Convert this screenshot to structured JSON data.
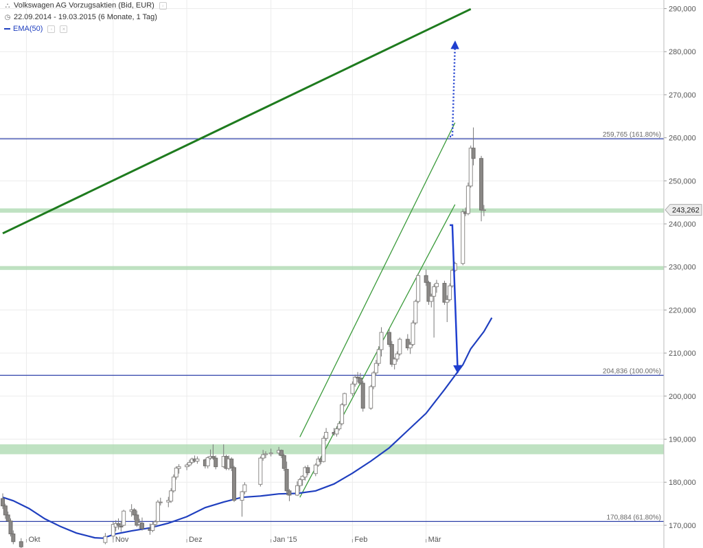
{
  "header": {
    "title": "Volkswagen AG Vorzugsaktien (Bid, EUR)",
    "period": "22.09.2014 - 19.03.2015 (6 Monate, 1 Tag)",
    "indicator": "EMA(50)"
  },
  "chart_data": {
    "type": "candlestick",
    "y_axis": {
      "position": "right",
      "ticks": [
        "170,000",
        "180,000",
        "190,000",
        "200,000",
        "210,000",
        "220,000",
        "230,000",
        "240,000",
        "250,000",
        "260,000",
        "270,000",
        "280,000",
        "290,000"
      ],
      "range": [
        166,
        292
      ]
    },
    "x_axis": {
      "ticks": [
        "Okt",
        "Nov",
        "Dez",
        "Jan '15",
        "Feb",
        "Mär"
      ]
    },
    "last_price": "243,262",
    "horizontal_levels": [
      {
        "value": 259.765,
        "label": "259,765 (161.80%)",
        "color": "#2b3fa8"
      },
      {
        "value": 204.836,
        "label": "204,836 (100.00%)",
        "color": "#2b3fa8"
      },
      {
        "value": 170.884,
        "label": "170,884 (61.80%)",
        "color": "#2b3fa8"
      }
    ],
    "support_zones": [
      {
        "from": 186.5,
        "to": 188.8,
        "color": "#a9d8ad"
      },
      {
        "from": 229.3,
        "to": 230.2,
        "color": "#a9d8ad"
      },
      {
        "from": 242.6,
        "to": 243.6,
        "color": "#a9d8ad"
      }
    ],
    "trendline": {
      "from": [
        "2014-09-22",
        237.8
      ],
      "to": [
        "2015-03-19",
        289.9
      ],
      "color": "#1e7b1e"
    },
    "channel": [
      {
        "from": [
          "2015-01-13",
          190.5
        ],
        "to": [
          "2015-03-13",
          263.5
        ],
        "color": "#3a9a3a"
      },
      {
        "from": [
          "2015-01-13",
          176.5
        ],
        "to": [
          "2015-03-13",
          244.5
        ],
        "color": "#3a9a3a"
      }
    ],
    "arrows": [
      {
        "style": "dotted",
        "points": [
          [
            "2015-03-11",
            260.3
          ],
          [
            "2015-03-12",
            260.3
          ],
          [
            "2015-03-13",
            281.6
          ]
        ],
        "color": "#1f3fcf"
      },
      {
        "style": "solid",
        "points": [
          [
            "2015-03-11",
            239.7
          ],
          [
            "2015-03-12",
            239.7
          ],
          [
            "2015-03-14",
            206.2
          ]
        ],
        "color": "#1f3fcf"
      }
    ],
    "ema50": {
      "color": "#1f3fbf",
      "points": [
        [
          "2014-09-22",
          176.5
        ],
        [
          "2014-09-26",
          175.7
        ],
        [
          "2014-10-02",
          173.9
        ],
        [
          "2014-10-08",
          171.5
        ],
        [
          "2014-10-14",
          169.7
        ],
        [
          "2014-10-20",
          168.2
        ],
        [
          "2014-10-27",
          167.1
        ],
        [
          "2014-10-30",
          167.0
        ],
        [
          "2014-11-04",
          168.0
        ],
        [
          "2014-11-10",
          168.7
        ],
        [
          "2014-11-17",
          169.4
        ],
        [
          "2014-11-24",
          170.5
        ],
        [
          "2014-12-01",
          172.0
        ],
        [
          "2014-12-08",
          174.1
        ],
        [
          "2014-12-15",
          175.4
        ],
        [
          "2014-12-22",
          176.5
        ],
        [
          "2014-12-29",
          176.8
        ],
        [
          "2015-01-05",
          177.3
        ],
        [
          "2015-01-12",
          177.4
        ],
        [
          "2015-01-19",
          178.0
        ],
        [
          "2015-01-26",
          179.6
        ],
        [
          "2015-02-02",
          182.1
        ],
        [
          "2015-02-09",
          184.9
        ],
        [
          "2015-02-16",
          188.0
        ],
        [
          "2015-02-23",
          192.0
        ],
        [
          "2015-03-02",
          196.0
        ],
        [
          "2015-03-09",
          201.5
        ],
        [
          "2015-03-16",
          207.3
        ],
        [
          "2015-03-19",
          211.0
        ],
        [
          "2015-03-24",
          215.0
        ],
        [
          "2015-03-27",
          218.2
        ]
      ]
    },
    "candles": [
      [
        "2014-09-22",
        176.2,
        177.4,
        173.8,
        174.5
      ],
      [
        "2014-09-23",
        174.5,
        175.0,
        171.5,
        172.4
      ],
      [
        "2014-09-24",
        172.4,
        173.2,
        170.8,
        171.0
      ],
      [
        "2014-09-25",
        171.0,
        171.6,
        167.4,
        168.0
      ],
      [
        "2014-09-26",
        168.0,
        168.8,
        165.6,
        166.2
      ],
      [
        "2014-09-29",
        166.2,
        167.0,
        164.4,
        165.0
      ],
      [
        "2014-10-31",
        166.0,
        168.2,
        165.6,
        167.4
      ],
      [
        "2014-11-03",
        167.5,
        170.8,
        166.7,
        170.2
      ],
      [
        "2014-11-04",
        169.6,
        171.2,
        168.6,
        170.4
      ],
      [
        "2014-11-05",
        170.4,
        171.6,
        169.0,
        170.0
      ],
      [
        "2014-11-06",
        169.8,
        171.0,
        168.5,
        169.6
      ],
      [
        "2014-11-07",
        170.0,
        173.6,
        169.8,
        173.3
      ],
      [
        "2014-11-10",
        173.2,
        174.9,
        172.0,
        173.6
      ],
      [
        "2014-11-11",
        173.6,
        174.0,
        171.2,
        172.4
      ],
      [
        "2014-11-12",
        172.4,
        173.4,
        169.6,
        170.0
      ],
      [
        "2014-11-13",
        170.2,
        171.5,
        169.0,
        170.6
      ],
      [
        "2014-11-14",
        170.5,
        171.8,
        168.8,
        169.2
      ],
      [
        "2014-11-17",
        169.2,
        170.4,
        167.8,
        168.8
      ],
      [
        "2014-11-18",
        168.8,
        170.8,
        168.4,
        170.2
      ],
      [
        "2014-11-19",
        170.2,
        171.2,
        169.6,
        170.8
      ],
      [
        "2014-11-20",
        170.9,
        175.9,
        170.7,
        175.4
      ],
      [
        "2014-11-21",
        175.4,
        176.4,
        174.6,
        175.4
      ],
      [
        "2014-11-24",
        175.4,
        176.6,
        174.2,
        175.8
      ],
      [
        "2014-11-25",
        175.6,
        178.6,
        175.2,
        178.0
      ],
      [
        "2014-11-26",
        178.0,
        181.8,
        177.6,
        181.2
      ],
      [
        "2014-11-27",
        181.2,
        183.7,
        180.6,
        183.3
      ],
      [
        "2014-11-28",
        183.2,
        184.2,
        182.0,
        183.6
      ],
      [
        "2014-12-01",
        183.6,
        184.4,
        182.8,
        184.0
      ],
      [
        "2014-12-02",
        184.0,
        185.2,
        183.6,
        184.6
      ],
      [
        "2014-12-03",
        184.6,
        185.7,
        184.2,
        185.4
      ],
      [
        "2014-12-04",
        185.4,
        186.2,
        184.6,
        184.9
      ],
      [
        "2014-12-05",
        184.9,
        186.0,
        184.3,
        185.4
      ],
      [
        "2014-12-08",
        185.2,
        185.5,
        183.2,
        183.8
      ],
      [
        "2014-12-09",
        183.8,
        186.0,
        183.2,
        185.7
      ],
      [
        "2014-12-10",
        185.6,
        187.6,
        185.2,
        186.0
      ],
      [
        "2014-12-11",
        186.0,
        188.8,
        185.2,
        185.6
      ],
      [
        "2014-12-12",
        185.6,
        186.2,
        183.0,
        183.6
      ],
      [
        "2014-12-15",
        183.6,
        188.8,
        183.4,
        186.0
      ],
      [
        "2014-12-16",
        186.0,
        186.4,
        182.8,
        183.2
      ],
      [
        "2014-12-17",
        183.2,
        186.2,
        182.8,
        185.4
      ],
      [
        "2014-12-18",
        185.4,
        185.8,
        182.6,
        183.4
      ],
      [
        "2014-12-19",
        183.4,
        183.8,
        175.4,
        175.8
      ],
      [
        "2014-12-22",
        175.8,
        178.0,
        172.0,
        177.8
      ],
      [
        "2014-12-23",
        177.8,
        180.0,
        177.2,
        179.4
      ],
      [
        "2014-12-29",
        179.5,
        186.0,
        179.0,
        185.6
      ],
      [
        "2014-12-30",
        185.6,
        187.5,
        185.0,
        186.4
      ],
      [
        "2014-12-31",
        186.4,
        187.2,
        185.6,
        186.6
      ],
      [
        "2015-01-02",
        186.6,
        187.8,
        186.0,
        186.8
      ],
      [
        "2015-01-05",
        186.8,
        188.2,
        186.2,
        187.4
      ],
      [
        "2015-01-06",
        187.4,
        187.6,
        185.6,
        186.2
      ],
      [
        "2015-01-07",
        186.2,
        186.6,
        182.6,
        183.2
      ],
      [
        "2015-01-08",
        183.0,
        184.8,
        177.0,
        178.0
      ],
      [
        "2015-01-09",
        178.0,
        178.4,
        175.6,
        177.0
      ],
      [
        "2015-01-12",
        177.0,
        180.2,
        176.8,
        179.2
      ],
      [
        "2015-01-13",
        179.2,
        181.0,
        177.8,
        180.6
      ],
      [
        "2015-01-14",
        180.6,
        181.6,
        179.2,
        181.4
      ],
      [
        "2015-01-15",
        181.2,
        183.8,
        180.4,
        183.4
      ],
      [
        "2015-01-16",
        183.4,
        184.0,
        181.6,
        182.2
      ],
      [
        "2015-01-19",
        182.0,
        184.4,
        181.4,
        184.0
      ],
      [
        "2015-01-20",
        184.0,
        186.0,
        183.6,
        185.4
      ],
      [
        "2015-01-21",
        185.4,
        186.0,
        184.2,
        184.8
      ],
      [
        "2015-01-22",
        184.8,
        190.8,
        184.6,
        190.2
      ],
      [
        "2015-01-23",
        190.2,
        192.6,
        189.6,
        191.6
      ],
      [
        "2015-01-26",
        191.6,
        192.6,
        190.8,
        191.2
      ],
      [
        "2015-01-27",
        191.2,
        193.0,
        190.6,
        192.4
      ],
      [
        "2015-01-28",
        192.4,
        194.2,
        192.0,
        193.6
      ],
      [
        "2015-01-29",
        193.6,
        198.4,
        193.2,
        198.0
      ],
      [
        "2015-01-30",
        198.0,
        200.8,
        197.6,
        200.6
      ],
      [
        "2015-02-02",
        200.6,
        203.4,
        200.0,
        202.8
      ],
      [
        "2015-02-03",
        202.8,
        205.0,
        202.2,
        204.4
      ],
      [
        "2015-02-04",
        204.4,
        205.6,
        203.2,
        204.2
      ],
      [
        "2015-02-05",
        204.2,
        205.4,
        202.6,
        203.0
      ],
      [
        "2015-02-06",
        203.0,
        203.6,
        196.4,
        197.2
      ],
      [
        "2015-02-09",
        197.2,
        202.6,
        196.8,
        202.2
      ],
      [
        "2015-02-10",
        202.2,
        205.8,
        201.6,
        205.4
      ],
      [
        "2015-02-11",
        205.4,
        208.4,
        204.8,
        207.6
      ],
      [
        "2015-02-12",
        207.6,
        211.6,
        207.0,
        210.8
      ],
      [
        "2015-02-13",
        210.8,
        216.0,
        209.2,
        214.8
      ],
      [
        "2015-02-16",
        214.8,
        215.6,
        211.4,
        212.0
      ],
      [
        "2015-02-17",
        212.0,
        212.8,
        206.8,
        207.4
      ],
      [
        "2015-02-18",
        207.4,
        209.0,
        206.2,
        208.6
      ],
      [
        "2015-02-19",
        208.6,
        210.4,
        208.0,
        209.8
      ],
      [
        "2015-02-20",
        209.8,
        213.6,
        209.4,
        213.2
      ],
      [
        "2015-02-23",
        213.2,
        214.4,
        210.6,
        211.2
      ],
      [
        "2015-02-24",
        211.2,
        212.6,
        209.8,
        212.0
      ],
      [
        "2015-02-25",
        212.0,
        217.6,
        211.6,
        217.0
      ],
      [
        "2015-02-26",
        217.0,
        222.4,
        216.6,
        222.0
      ],
      [
        "2015-02-27",
        222.0,
        228.6,
        221.6,
        228.0
      ],
      [
        "2015-03-02",
        228.0,
        229.4,
        225.6,
        226.4
      ],
      [
        "2015-03-03",
        226.4,
        226.8,
        221.2,
        222.0
      ],
      [
        "2015-03-04",
        222.0,
        223.8,
        220.6,
        223.2
      ],
      [
        "2015-03-05",
        223.2,
        226.0,
        213.6,
        225.4
      ],
      [
        "2015-03-06",
        225.4,
        227.0,
        224.0,
        226.2
      ],
      [
        "2015-03-09",
        226.2,
        226.8,
        221.2,
        221.8
      ],
      [
        "2015-03-10",
        221.8,
        223.4,
        217.2,
        222.4
      ],
      [
        "2015-03-11",
        222.4,
        226.2,
        222.0,
        225.6
      ],
      [
        "2015-03-12",
        225.6,
        229.6,
        225.2,
        229.2
      ],
      [
        "2015-03-13",
        229.2,
        231.2,
        228.8,
        230.8
      ],
      [
        "2015-03-16",
        230.8,
        243.4,
        230.4,
        242.8
      ],
      [
        "2015-03-17",
        242.8,
        243.8,
        241.8,
        242.4
      ],
      [
        "2015-03-18",
        242.4,
        249.6,
        242.0,
        248.8
      ],
      [
        "2015-03-19",
        248.8,
        258.2,
        248.4,
        257.6
      ],
      [
        "2015-03-20",
        257.6,
        262.4,
        253.6,
        255.2
      ],
      [
        "2015-03-23",
        255.2,
        255.8,
        240.6,
        243.2
      ],
      [
        "2015-03-24",
        243.2,
        244.4,
        241.8,
        243.262
      ]
    ]
  }
}
